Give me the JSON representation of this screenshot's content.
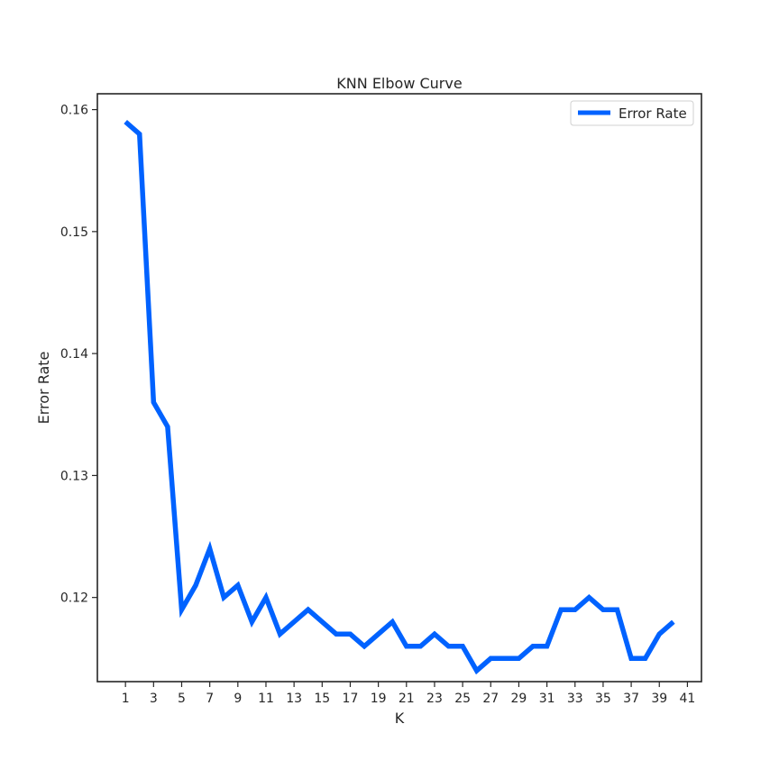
{
  "chart_data": {
    "type": "line",
    "title": "KNN Elbow Curve",
    "xlabel": "K",
    "ylabel": "Error Rate",
    "xlim": [
      -1,
      42
    ],
    "ylim": [
      0.1131,
      0.1613
    ],
    "xticks": [
      1,
      3,
      5,
      7,
      9,
      11,
      13,
      15,
      17,
      19,
      21,
      23,
      25,
      27,
      29,
      31,
      33,
      35,
      37,
      39,
      41
    ],
    "yticks": [
      0.12,
      0.13,
      0.14,
      0.15,
      0.16
    ],
    "ytick_labels": [
      "0.12",
      "0.13",
      "0.14",
      "0.15",
      "0.16"
    ],
    "grid": false,
    "legend_position": "top-right",
    "series": [
      {
        "name": "Error Rate",
        "color": "#0062ff",
        "x": [
          1,
          2,
          3,
          4,
          5,
          6,
          7,
          8,
          9,
          10,
          11,
          12,
          13,
          14,
          15,
          16,
          17,
          18,
          19,
          20,
          21,
          22,
          23,
          24,
          25,
          26,
          27,
          28,
          29,
          30,
          31,
          32,
          33,
          34,
          35,
          36,
          37,
          38,
          39,
          40
        ],
        "values": [
          0.159,
          0.158,
          0.136,
          0.134,
          0.119,
          0.121,
          0.124,
          0.12,
          0.121,
          0.118,
          0.12,
          0.117,
          0.118,
          0.119,
          0.118,
          0.117,
          0.117,
          0.116,
          0.117,
          0.118,
          0.116,
          0.116,
          0.117,
          0.116,
          0.116,
          0.114,
          0.115,
          0.115,
          0.115,
          0.116,
          0.116,
          0.119,
          0.119,
          0.12,
          0.119,
          0.119,
          0.115,
          0.115,
          0.117,
          0.118
        ]
      }
    ]
  }
}
